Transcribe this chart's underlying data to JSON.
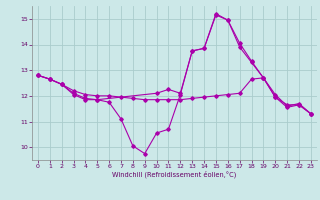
{
  "background_color": "#cce8e8",
  "grid_color": "#aacccc",
  "line_color": "#aa00aa",
  "xlim": [
    -0.5,
    23.5
  ],
  "ylim": [
    9.5,
    15.5
  ],
  "yticks": [
    10,
    11,
    12,
    13,
    14,
    15
  ],
  "xticks": [
    0,
    1,
    2,
    3,
    4,
    5,
    6,
    7,
    8,
    9,
    10,
    11,
    12,
    13,
    14,
    15,
    16,
    17,
    18,
    19,
    20,
    21,
    22,
    23
  ],
  "xlabel": "Windchill (Refroidissement éolien,°C)",
  "series": [
    {
      "x": [
        0,
        1,
        2,
        3,
        4,
        5,
        6,
        7,
        8,
        9,
        10,
        11,
        12,
        13,
        14,
        15,
        16,
        17,
        18,
        19,
        20,
        21,
        22,
        23
      ],
      "y": [
        12.8,
        12.65,
        12.45,
        12.05,
        11.85,
        11.85,
        11.75,
        11.1,
        10.05,
        9.75,
        10.55,
        10.7,
        12.05,
        13.75,
        13.85,
        15.15,
        14.95,
        13.9,
        13.3,
        12.7,
        11.95,
        11.55,
        11.65,
        11.3
      ]
    },
    {
      "x": [
        0,
        1,
        2,
        3,
        4,
        5,
        6,
        7,
        8,
        9,
        10,
        11,
        12,
        13,
        14,
        15,
        16,
        17,
        18,
        19,
        20,
        21,
        22,
        23
      ],
      "y": [
        12.8,
        12.65,
        12.45,
        12.2,
        12.05,
        12.0,
        12.0,
        11.95,
        11.9,
        11.85,
        11.85,
        11.85,
        11.85,
        11.9,
        11.95,
        12.0,
        12.05,
        12.1,
        12.65,
        12.7,
        12.05,
        11.6,
        11.7,
        11.3
      ]
    },
    {
      "x": [
        0,
        1,
        2,
        3,
        4,
        5,
        10,
        11,
        12,
        13,
        14,
        15,
        16,
        17,
        18,
        19,
        20,
        21,
        22,
        23
      ],
      "y": [
        12.8,
        12.65,
        12.45,
        12.1,
        11.9,
        11.85,
        12.1,
        12.25,
        12.1,
        13.75,
        13.85,
        15.2,
        14.95,
        14.05,
        13.35,
        12.7,
        11.95,
        11.65,
        11.65,
        11.3
      ]
    }
  ]
}
